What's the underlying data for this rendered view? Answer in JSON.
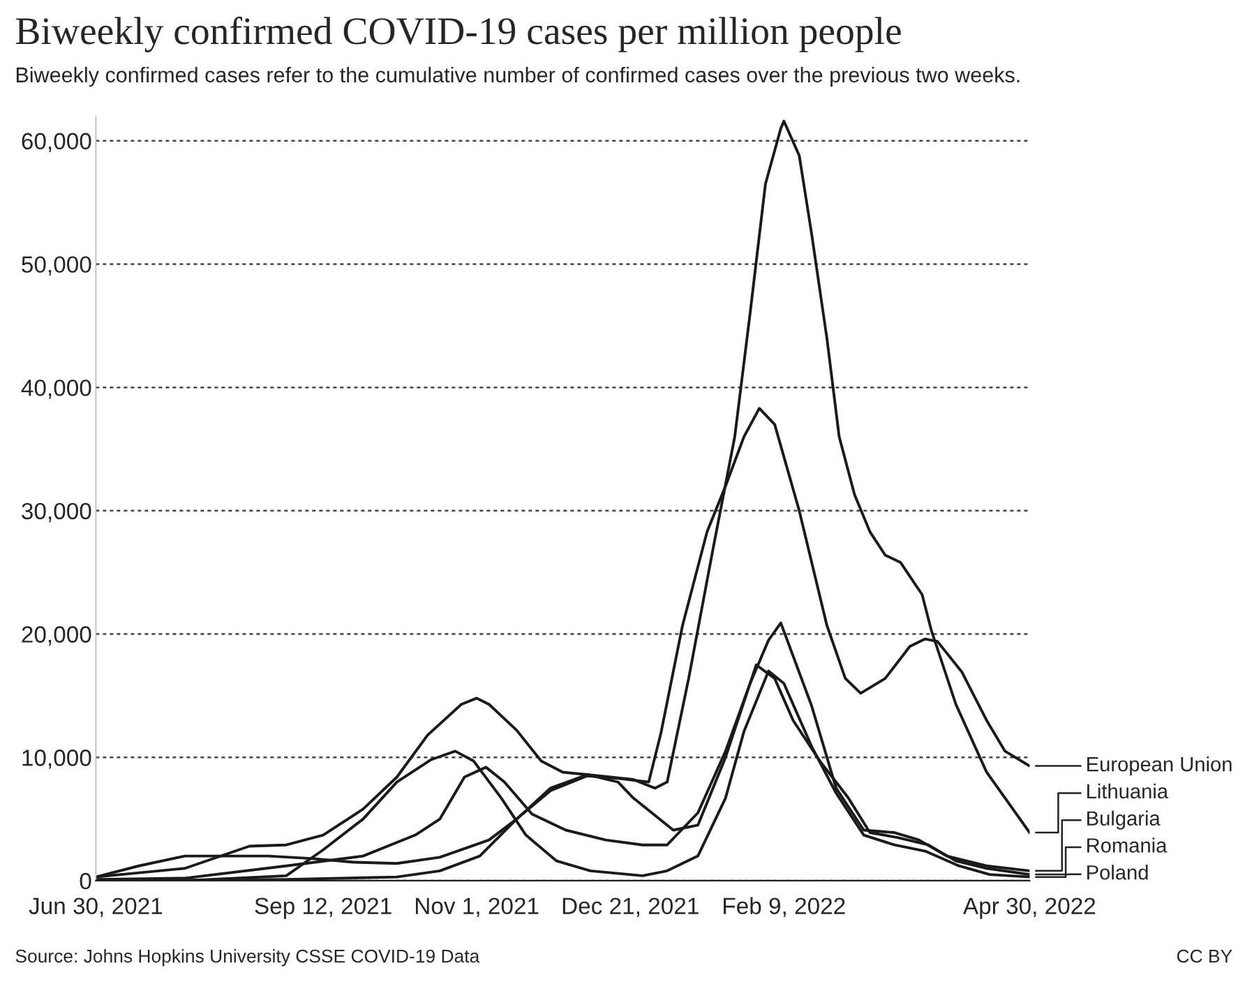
{
  "chart_data": {
    "type": "line",
    "title": "Biweekly confirmed COVID-19 cases per million people",
    "subtitle": "Biweekly confirmed cases refer to the cumulative number of confirmed cases over the previous two weeks.",
    "annotations": [
      "Source: Johns Hopkins University CSSE COVID-19 Data",
      "CC BY"
    ],
    "xlim": [
      "2021-06-30",
      "2022-04-30"
    ],
    "xticks": [
      {
        "value": "2021-06-30",
        "label": "Jun 30, 2021"
      },
      {
        "value": "2021-09-12",
        "label": "Sep 12, 2021"
      },
      {
        "value": "2021-11-01",
        "label": "Nov 1, 2021"
      },
      {
        "value": "2021-12-21",
        "label": "Dec 21, 2021"
      },
      {
        "value": "2022-02-09",
        "label": "Feb 9, 2022"
      },
      {
        "value": "2022-04-30",
        "label": "Apr 30, 2022"
      }
    ],
    "ylim": [
      0,
      62000
    ],
    "yticks": [
      0,
      {
        "value": 10000,
        "label": "10,000"
      },
      {
        "value": 20000,
        "label": "20,000"
      },
      {
        "value": 30000,
        "label": "30,000"
      },
      {
        "value": 40000,
        "label": "40,000"
      },
      {
        "value": 50000,
        "label": "50,000"
      },
      {
        "value": 60000,
        "label": "60,000"
      }
    ],
    "grid": "y",
    "legend": "right",
    "line_style": "solid",
    "marker": "none",
    "series": [
      {
        "name": "European Union",
        "color": "#1a1a1a",
        "x": [
          "2021-06-30",
          "2021-07-14",
          "2021-07-29",
          "2021-08-11",
          "2021-08-25",
          "2021-09-08",
          "2021-09-22",
          "2021-10-06",
          "2021-10-20",
          "2021-11-05",
          "2021-11-14",
          "2021-11-25",
          "2021-12-07",
          "2021-12-17",
          "2021-12-27",
          "2021-12-31",
          "2022-01-07",
          "2022-01-15",
          "2022-01-21",
          "2022-01-27",
          "2022-02-01",
          "2022-02-06",
          "2022-02-14",
          "2022-02-23",
          "2022-03-01",
          "2022-03-06",
          "2022-03-14",
          "2022-03-22",
          "2022-03-27",
          "2022-03-31",
          "2022-04-08",
          "2022-04-16",
          "2022-04-22",
          "2022-04-30"
        ],
        "values": [
          300,
          1200,
          2000,
          2000,
          2000,
          1800,
          1500,
          1400,
          1900,
          3300,
          5000,
          7300,
          8500,
          8300,
          8000,
          12000,
          20700,
          28300,
          32000,
          36000,
          38300,
          37000,
          30000,
          20700,
          16400,
          15200,
          16400,
          19000,
          19600,
          19400,
          16900,
          13000,
          10500,
          9300
        ]
      },
      {
        "name": "Lithuania",
        "color": "#1a1a1a",
        "x": [
          "2021-06-30",
          "2021-07-29",
          "2021-08-19",
          "2021-08-31",
          "2021-09-12",
          "2021-09-25",
          "2021-10-06",
          "2021-10-16",
          "2021-10-27",
          "2021-11-01",
          "2021-11-05",
          "2021-11-14",
          "2021-11-22",
          "2021-11-29",
          "2021-12-07",
          "2021-12-22",
          "2021-12-29",
          "2022-01-02",
          "2022-01-09",
          "2022-01-17",
          "2022-01-24",
          "2022-01-29",
          "2022-02-03",
          "2022-02-08",
          "2022-02-09",
          "2022-02-14",
          "2022-02-18",
          "2022-02-23",
          "2022-02-27",
          "2022-03-04",
          "2022-03-09",
          "2022-03-14",
          "2022-03-19",
          "2022-03-26",
          "2022-03-29",
          "2022-04-06",
          "2022-04-16",
          "2022-04-30"
        ],
        "values": [
          300,
          1000,
          2800,
          2900,
          3700,
          5800,
          8400,
          11800,
          14300,
          14800,
          14300,
          12200,
          9700,
          8800,
          8600,
          8200,
          7500,
          8000,
          16400,
          27000,
          36000,
          46000,
          56500,
          61000,
          61600,
          58800,
          52500,
          44000,
          36000,
          31300,
          28300,
          26400,
          25800,
          23200,
          20300,
          14300,
          8800,
          3900
        ]
      },
      {
        "name": "Bulgaria",
        "color": "#1a1a1a",
        "x": [
          "2021-06-30",
          "2021-07-29",
          "2021-08-31",
          "2021-09-25",
          "2021-10-12",
          "2021-10-20",
          "2021-10-28",
          "2021-11-04",
          "2021-11-10",
          "2021-11-19",
          "2021-11-30",
          "2021-12-13",
          "2021-12-25",
          "2022-01-02",
          "2022-01-12",
          "2022-01-21",
          "2022-01-29",
          "2022-02-04",
          "2022-02-08",
          "2022-02-18",
          "2022-02-26",
          "2022-03-07",
          "2022-03-17",
          "2022-03-25",
          "2022-04-03",
          "2022-04-16",
          "2022-04-30"
        ],
        "values": [
          100,
          200,
          1200,
          2000,
          3700,
          5000,
          8400,
          9200,
          8000,
          5400,
          4100,
          3300,
          2900,
          2900,
          5500,
          10500,
          16000,
          19500,
          20900,
          14200,
          7500,
          4100,
          3900,
          3300,
          2000,
          1200,
          800
        ]
      },
      {
        "name": "Romania",
        "color": "#1a1a1a",
        "x": [
          "2021-06-30",
          "2021-07-29",
          "2021-08-31",
          "2021-09-12",
          "2021-09-25",
          "2021-10-06",
          "2021-10-17",
          "2021-10-25",
          "2021-10-31",
          "2021-11-09",
          "2021-11-17",
          "2021-11-27",
          "2021-12-08",
          "2021-12-25",
          "2022-01-02",
          "2022-01-12",
          "2022-01-21",
          "2022-01-27",
          "2022-02-04",
          "2022-02-09",
          "2022-02-18",
          "2022-02-26",
          "2022-03-07",
          "2022-03-17",
          "2022-03-27",
          "2022-04-07",
          "2022-04-17",
          "2022-04-30"
        ],
        "values": [
          0,
          0,
          400,
          2500,
          5000,
          8000,
          9800,
          10500,
          9700,
          6700,
          3700,
          1600,
          800,
          400,
          800,
          2000,
          6700,
          12100,
          17000,
          16000,
          10900,
          7100,
          3700,
          2900,
          2400,
          1200,
          500,
          300
        ]
      },
      {
        "name": "Poland",
        "color": "#1a1a1a",
        "x": [
          "2021-06-30",
          "2021-08-31",
          "2021-10-06",
          "2021-10-20",
          "2021-11-02",
          "2021-11-14",
          "2021-11-25",
          "2021-12-07",
          "2021-12-17",
          "2021-12-22",
          "2022-01-04",
          "2022-01-12",
          "2022-01-21",
          "2022-01-31",
          "2022-02-06",
          "2022-02-12",
          "2022-02-21",
          "2022-03-02",
          "2022-03-09",
          "2022-03-18",
          "2022-03-28",
          "2022-04-06",
          "2022-04-16",
          "2022-04-30"
        ],
        "values": [
          0,
          100,
          300,
          800,
          2000,
          5000,
          7500,
          8600,
          8000,
          6700,
          4100,
          4500,
          10000,
          17500,
          16400,
          13000,
          9600,
          6700,
          3900,
          3500,
          2900,
          1600,
          1000,
          500
        ]
      }
    ]
  }
}
